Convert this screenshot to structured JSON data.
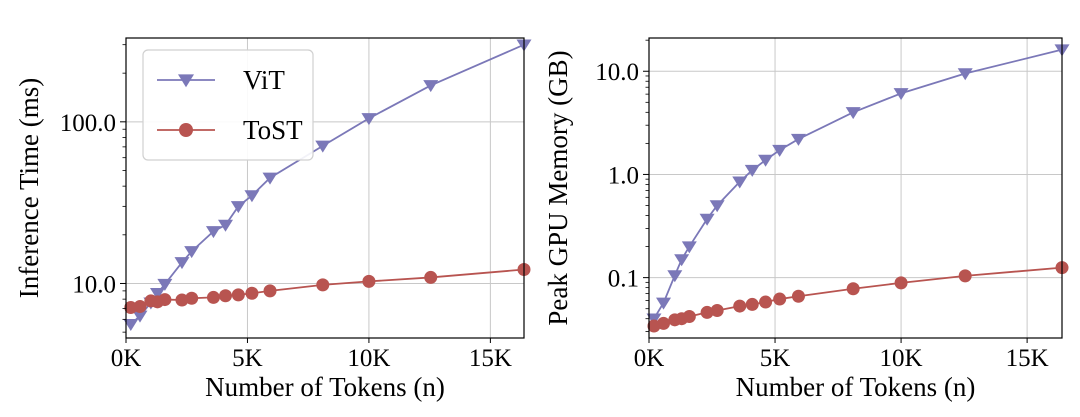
{
  "chart_data": [
    {
      "type": "line",
      "title": "",
      "xlabel": "Number of Tokens (n)",
      "ylabel": "Inference Time (ms)",
      "yscale": "log",
      "xlim": [
        0,
        16384
      ],
      "ylim": [
        4.6,
        330
      ],
      "xticks": [
        0,
        5000,
        10000,
        15000
      ],
      "xtick_labels": [
        "0K",
        "5K",
        "10K",
        "15K"
      ],
      "yticks": [
        10,
        100
      ],
      "ytick_labels": [
        "10.0",
        "100.0"
      ],
      "grid": true,
      "legend": "top-left",
      "series": [
        {
          "name": "ViT",
          "color": "#7b78b8",
          "marker": "triangle-down",
          "x": [
            197,
            576,
            1024,
            1296,
            1600,
            2304,
            2704,
            3600,
            4096,
            4624,
            5184,
            5929,
            8100,
            10000,
            12544,
            16384
          ],
          "y": [
            5.6,
            6.3,
            7.6,
            8.7,
            9.9,
            13.5,
            15.8,
            21,
            23,
            30,
            35,
            45,
            71,
            105,
            168,
            300
          ]
        },
        {
          "name": "ToST",
          "color": "#b85450",
          "marker": "circle",
          "x": [
            197,
            576,
            1024,
            1296,
            1600,
            2304,
            2704,
            3600,
            4096,
            4624,
            5184,
            5929,
            8100,
            10000,
            12544,
            16384
          ],
          "y": [
            7.1,
            7.2,
            7.8,
            7.7,
            7.95,
            7.9,
            8.1,
            8.2,
            8.4,
            8.5,
            8.7,
            9.0,
            9.8,
            10.3,
            10.9,
            12.2
          ]
        }
      ]
    },
    {
      "type": "line",
      "title": "",
      "xlabel": "Number of Tokens (n)",
      "ylabel": "Peak GPU Memory (GB)",
      "yscale": "log",
      "xlim": [
        0,
        16384
      ],
      "ylim": [
        0.026,
        21
      ],
      "xticks": [
        0,
        5000,
        10000,
        15000
      ],
      "xtick_labels": [
        "0K",
        "5K",
        "10K",
        "15K"
      ],
      "yticks": [
        0.1,
        1.0,
        10.0
      ],
      "ytick_labels": [
        "0.1",
        "1.0",
        "10.0"
      ],
      "grid": true,
      "series": [
        {
          "name": "ViT",
          "color": "#7b78b8",
          "marker": "triangle-down",
          "x": [
            197,
            576,
            1024,
            1296,
            1600,
            2304,
            2704,
            3600,
            4096,
            4624,
            5184,
            5929,
            8100,
            10000,
            12544,
            16384
          ],
          "y": [
            0.04,
            0.057,
            0.105,
            0.15,
            0.2,
            0.37,
            0.5,
            0.85,
            1.1,
            1.38,
            1.72,
            2.2,
            4.0,
            6.1,
            9.5,
            16.2
          ]
        },
        {
          "name": "ToST",
          "color": "#b85450",
          "marker": "circle",
          "x": [
            197,
            576,
            1024,
            1296,
            1600,
            2304,
            2704,
            3600,
            4096,
            4624,
            5184,
            5929,
            8100,
            10000,
            12544,
            16384
          ],
          "y": [
            0.034,
            0.036,
            0.039,
            0.04,
            0.042,
            0.046,
            0.048,
            0.053,
            0.055,
            0.058,
            0.062,
            0.066,
            0.078,
            0.089,
            0.104,
            0.125
          ]
        }
      ]
    }
  ]
}
